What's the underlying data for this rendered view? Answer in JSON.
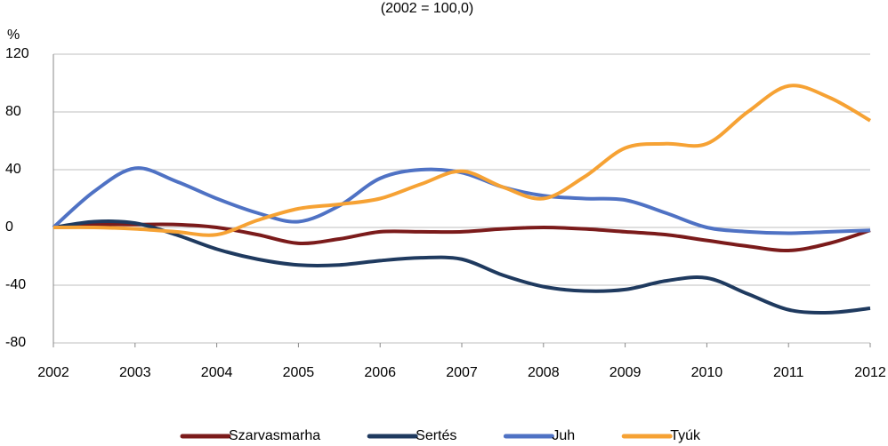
{
  "chart_data": {
    "type": "line",
    "subtitle": "(2002 = 100,0)",
    "y_label": "%",
    "x": [
      2002,
      2002.5,
      2003,
      2003.5,
      2004,
      2004.5,
      2005,
      2005.5,
      2006,
      2006.5,
      2007,
      2007.5,
      2008,
      2008.5,
      2009,
      2009.5,
      2010,
      2010.5,
      2011,
      2011.5,
      2012
    ],
    "series": [
      {
        "name": "Szarvasmarha",
        "color": "#7b1b1b",
        "values": [
          0,
          2,
          2,
          2,
          0,
          -5,
          -11,
          -8,
          -3,
          -3,
          -3,
          -1,
          0,
          -1,
          -3,
          -5,
          -9,
          -13,
          -16,
          -11,
          -2
        ]
      },
      {
        "name": "Sertés",
        "color": "#1f3a5f",
        "values": [
          0,
          4,
          3,
          -5,
          -15,
          -22,
          -26,
          -26,
          -23,
          -21,
          -22,
          -33,
          -41,
          -44,
          -43,
          -37,
          -35,
          -46,
          -57,
          -59,
          -56
        ]
      },
      {
        "name": "Juh",
        "color": "#4f72c4",
        "values": [
          0,
          25,
          41,
          32,
          20,
          10,
          4,
          15,
          34,
          40,
          38,
          28,
          22,
          20,
          19,
          10,
          0,
          -3,
          -4,
          -3,
          -2
        ]
      },
      {
        "name": "Tyúk",
        "color": "#f6a234",
        "values": [
          0,
          0,
          -1,
          -3,
          -5,
          5,
          13,
          16,
          20,
          30,
          39,
          28,
          20,
          35,
          55,
          58,
          58,
          80,
          98,
          90,
          74
        ]
      }
    ],
    "xlim": [
      2002,
      2012
    ],
    "xticks": [
      2002,
      2003,
      2004,
      2005,
      2006,
      2007,
      2008,
      2009,
      2010,
      2011,
      2012
    ],
    "ylim": [
      -80,
      120
    ],
    "yticks": [
      -80,
      -40,
      0,
      40,
      80,
      120
    ],
    "grid": true,
    "legend": "bottom"
  }
}
